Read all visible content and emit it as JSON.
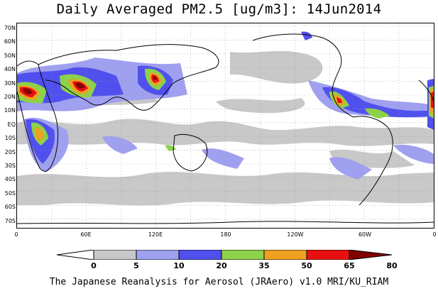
{
  "title": "Daily Averaged PM2.5 [ug/m3]: 14Jun2014",
  "lat_labels": [
    "70N",
    "60N",
    "50N",
    "40N",
    "30N",
    "20N",
    "10N",
    "EQ",
    "10S",
    "20S",
    "30S",
    "40S",
    "50S",
    "60S",
    "70S"
  ],
  "lon_labels": [
    "0",
    "60E",
    "120E",
    "180",
    "120W",
    "60W",
    "0"
  ],
  "colorbar": {
    "ticks": [
      "0",
      "5",
      "10",
      "20",
      "35",
      "50",
      "65",
      "80"
    ],
    "colors": [
      "#ffffff",
      "#c8c8c8",
      "#a0a0f0",
      "#5050ee",
      "#8cd24a",
      "#f0a020",
      "#e81010",
      "#800000"
    ]
  },
  "credit": "The Japanese Reanalysis for Aerosol (JRAero) v1.0 MRI/KU_RIAM"
}
